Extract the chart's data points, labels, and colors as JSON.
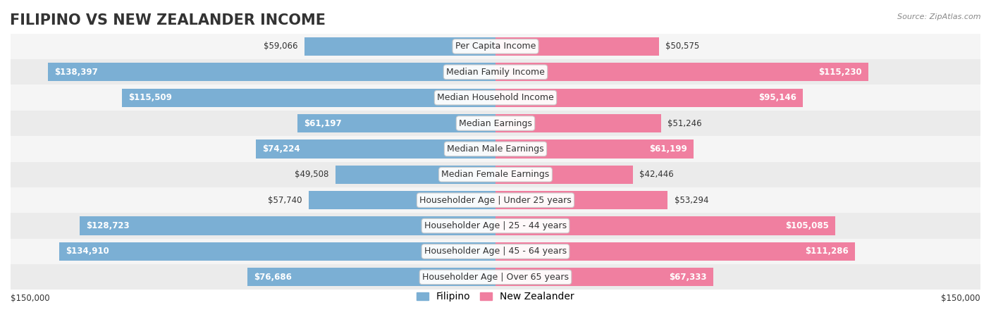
{
  "title": "FILIPINO VS NEW ZEALANDER INCOME",
  "source": "Source: ZipAtlas.com",
  "categories": [
    "Per Capita Income",
    "Median Family Income",
    "Median Household Income",
    "Median Earnings",
    "Median Male Earnings",
    "Median Female Earnings",
    "Householder Age | Under 25 years",
    "Householder Age | 25 - 44 years",
    "Householder Age | 45 - 64 years",
    "Householder Age | Over 65 years"
  ],
  "filipino_values": [
    59066,
    138397,
    115509,
    61197,
    74224,
    49508,
    57740,
    128723,
    134910,
    76686
  ],
  "nz_values": [
    50575,
    115230,
    95146,
    51246,
    61199,
    42446,
    53294,
    105085,
    111286,
    67333
  ],
  "max_value": 150000,
  "filipino_color": "#7BAFD4",
  "nz_color": "#F07FA0",
  "filipino_color_dark": "#5B9EC9",
  "nz_color_dark": "#EE5A85",
  "bg_row_light": "#F5F5F5",
  "bg_row_dark": "#EBEBEB",
  "title_fontsize": 15,
  "label_fontsize": 9,
  "value_fontsize": 8.5,
  "legend_fontsize": 10
}
